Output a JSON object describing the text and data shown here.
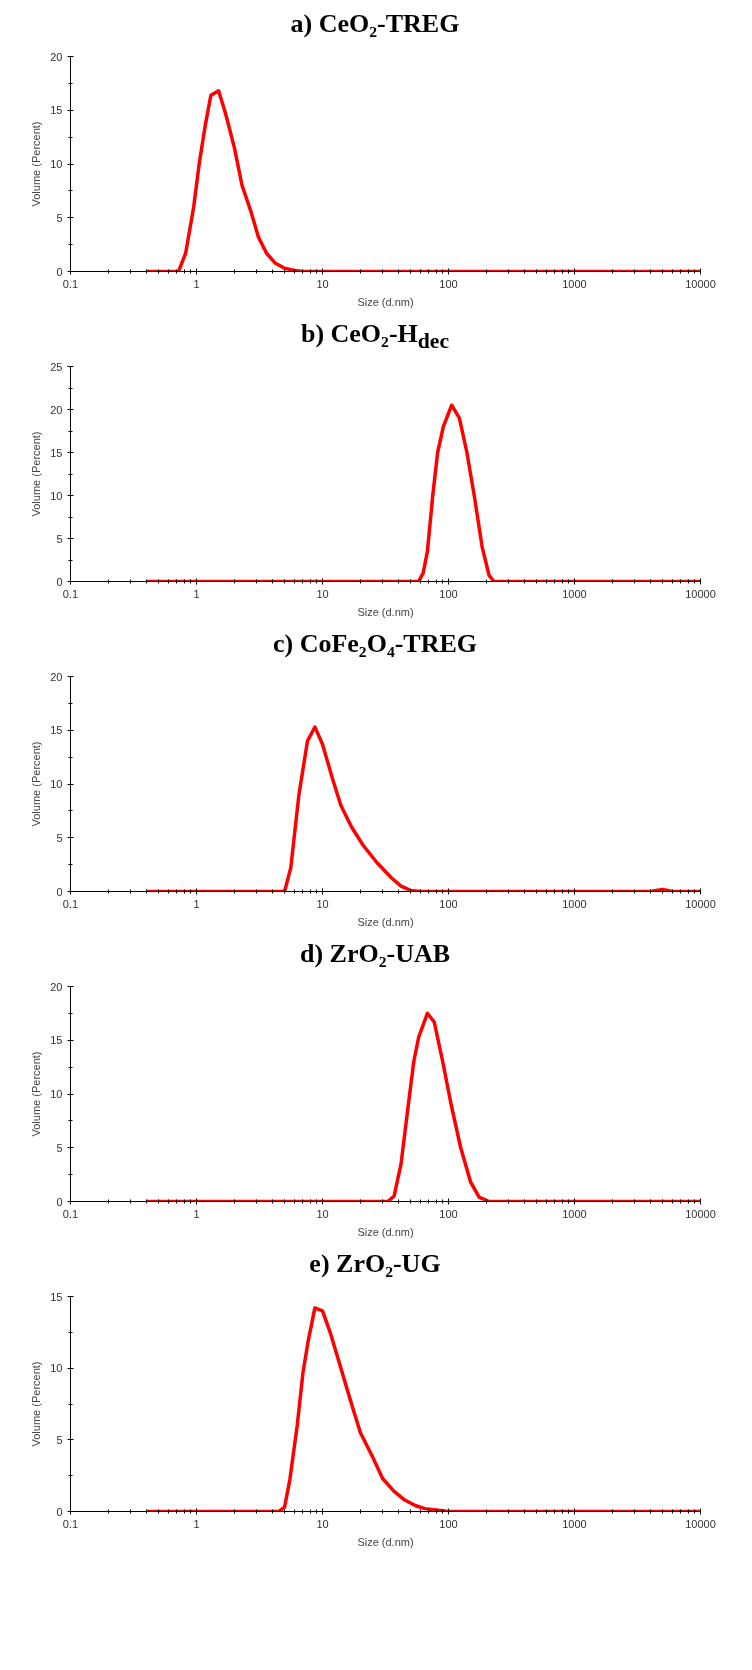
{
  "chart_data": [
    {
      "type": "line",
      "title": "a)  CeO₂-TREG",
      "xlabel": "Size (d.nm)",
      "ylabel": "Volume (Percent)",
      "log": "x",
      "grid": false,
      "marker": "none",
      "line_style": "solid",
      "xlim": [
        0.1,
        10000
      ],
      "xticks": [
        0.1,
        1,
        10,
        100,
        1000,
        10000
      ],
      "ylim": [
        0,
        20
      ],
      "yticks": [
        0,
        5,
        10,
        15,
        20
      ],
      "series": [
        {
          "color": "#ff0000",
          "x": [
            0.4,
            0.72,
            0.82,
            0.95,
            1.05,
            1.17,
            1.3,
            1.5,
            1.7,
            2.0,
            2.3,
            2.7,
            3.1,
            3.6,
            4.2,
            5,
            6,
            7,
            10000
          ],
          "values": [
            0,
            0,
            1.7,
            6,
            10,
            13.5,
            16.4,
            16.8,
            14.7,
            11.5,
            8,
            5.6,
            3.2,
            1.7,
            0.8,
            0.3,
            0.1,
            0,
            0
          ]
        }
      ]
    },
    {
      "type": "line",
      "title": "b)  CeO₂-H$_{dec}$",
      "xlabel": "Size (d.nm)",
      "ylabel": "Volume (Percent)",
      "log": "x",
      "grid": false,
      "marker": "none",
      "line_style": "solid",
      "xlim": [
        0.1,
        10000
      ],
      "xticks": [
        0.1,
        1,
        10,
        100,
        1000,
        10000
      ],
      "ylim": [
        0,
        25
      ],
      "yticks": [
        0,
        5,
        10,
        15,
        20,
        25
      ],
      "series": [
        {
          "color": "#ff0000",
          "x": [
            0.4,
            58,
            63,
            68,
            75,
            82,
            91,
            106,
            122,
            140,
            160,
            185,
            210,
            230,
            10000
          ],
          "values": [
            0,
            0,
            1,
            3.5,
            10,
            15,
            18,
            20.5,
            19,
            15,
            10,
            4,
            0.7,
            0,
            0
          ]
        }
      ]
    },
    {
      "type": "line",
      "title": "c)  CoFe₂O₄-TREG",
      "xlabel": "Size (d.nm)",
      "ylabel": "Volume (Percent)",
      "log": "x",
      "grid": false,
      "marker": "none",
      "line_style": "solid",
      "xlim": [
        0.1,
        10000
      ],
      "xticks": [
        0.1,
        1,
        10,
        100,
        1000,
        10000
      ],
      "ylim": [
        0,
        20
      ],
      "yticks": [
        0,
        5,
        10,
        15,
        20
      ],
      "series": [
        {
          "color": "#ff0000",
          "x": [
            0.4,
            5,
            5.6,
            6.5,
            7.6,
            8.7,
            10,
            12,
            14,
            17,
            21,
            27,
            35,
            42,
            50,
            60,
            4000,
            5000,
            6000,
            10000
          ],
          "values": [
            0,
            0,
            2.2,
            9,
            14,
            15.3,
            13.7,
            10.5,
            8,
            6,
            4.3,
            2.7,
            1.3,
            0.5,
            0.1,
            0,
            0,
            0.2,
            0,
            0
          ]
        }
      ]
    },
    {
      "type": "line",
      "title": "d)  ZrO₂-UAB",
      "xlabel": "Size (d.nm)",
      "ylabel": "Volume (Percent)",
      "log": "x",
      "grid": false,
      "marker": "none",
      "line_style": "solid",
      "xlim": [
        0.1,
        10000
      ],
      "xticks": [
        0.1,
        1,
        10,
        100,
        1000,
        10000
      ],
      "ylim": [
        0,
        20
      ],
      "yticks": [
        0,
        5,
        10,
        15,
        20
      ],
      "series": [
        {
          "color": "#ff0000",
          "x": [
            0.4,
            33,
            37,
            42,
            48,
            53,
            58,
            68,
            77,
            90,
            105,
            125,
            150,
            175,
            210,
            10000
          ],
          "values": [
            0,
            0,
            0.5,
            3.5,
            9,
            13,
            15.3,
            17.5,
            16.7,
            13,
            9,
            5,
            1.8,
            0.4,
            0,
            0
          ]
        }
      ]
    },
    {
      "type": "line",
      "title": "e)  ZrO₂-UG",
      "xlabel": "Size (d.nm)",
      "ylabel": "Volume (Percent)",
      "log": "x",
      "grid": false,
      "marker": "none",
      "line_style": "solid",
      "xlim": [
        0.1,
        10000
      ],
      "xticks": [
        0.1,
        1,
        10,
        100,
        1000,
        10000
      ],
      "ylim": [
        0,
        15
      ],
      "yticks": [
        0,
        5,
        10,
        15
      ],
      "series": [
        {
          "color": "#ff0000",
          "x": [
            0.4,
            4.5,
            5,
            5.5,
            6.3,
            7,
            7.7,
            8.7,
            10,
            11.5,
            14,
            17,
            20,
            25,
            30,
            37,
            45,
            55,
            65,
            80,
            100,
            10000
          ],
          "values": [
            0,
            0,
            0.3,
            2.2,
            6,
            9.7,
            11.9,
            14.2,
            14,
            12.5,
            10,
            7.5,
            5.5,
            3.8,
            2.3,
            1.4,
            0.8,
            0.4,
            0.2,
            0.1,
            0,
            0
          ]
        }
      ]
    }
  ]
}
